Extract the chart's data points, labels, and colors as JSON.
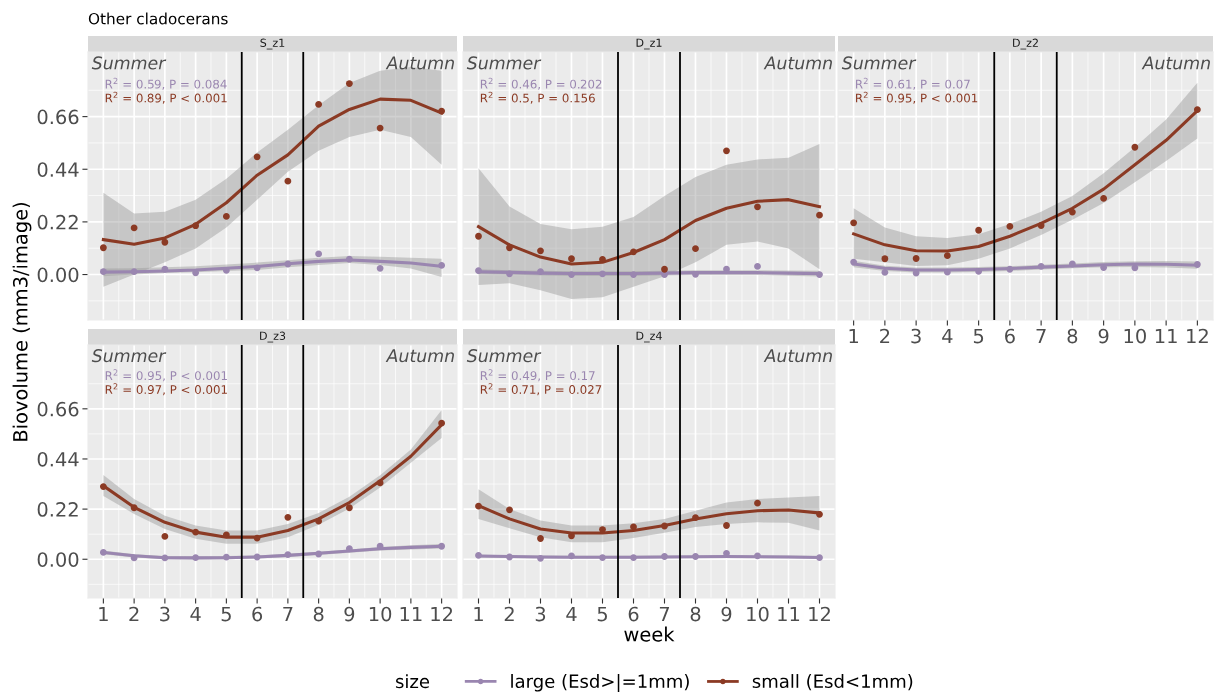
{
  "chart_data": [
    {
      "type": "line",
      "title": "S_z1",
      "xlim": [
        0.5,
        12.5
      ],
      "ylim": [
        -0.19,
        0.93
      ],
      "xticks": [
        1,
        2,
        3,
        4,
        5,
        6,
        7,
        8,
        9,
        10,
        11,
        12
      ],
      "yticks": [
        {
          "value": 0,
          "label": "0.00"
        },
        {
          "value": 0.22,
          "label": "0.22"
        },
        {
          "value": 0.44,
          "label": "0.44"
        },
        {
          "value": 0.66,
          "label": "0.66"
        }
      ],
      "tick_labels": "y",
      "grid": true,
      "legend": "bottom",
      "line_style": "solid",
      "ref_lines": [
        {
          "axis": "x",
          "value": 5.5,
          "color": "#000000"
        },
        {
          "axis": "x",
          "value": 7.5,
          "color": "#000000"
        }
      ],
      "annotations": [
        "Summer",
        "Autumn",
        "R$^{2}$ = 0.59, P = 0.084",
        "R$^{2}$ = 0.89, P < 0.001"
      ],
      "series": [
        {
          "type": "scatter",
          "color": "#9a86b0",
          "x": [
            1,
            2,
            3,
            4,
            5,
            6,
            7,
            8,
            9,
            10,
            12
          ],
          "values": [
            0.012,
            0.012,
            0.022,
            0.007,
            0.017,
            0.028,
            0.044,
            0.086,
            0.064,
            0.026,
            0.038
          ]
        },
        {
          "type": "scatter",
          "color": "#8b3a24",
          "x": [
            1,
            2,
            3,
            4,
            5,
            6,
            7,
            8,
            9,
            10,
            12
          ],
          "values": [
            0.112,
            0.195,
            0.135,
            0.204,
            0.243,
            0.492,
            0.39,
            0.711,
            0.798,
            0.612,
            0.683
          ]
        },
        {
          "type": "line",
          "name": "large (Esd>|=1mm)",
          "color": "#9a86b0",
          "x": [
            1,
            2,
            3,
            4,
            5,
            6,
            7,
            8,
            9,
            10,
            11,
            12
          ],
          "values": [
            0.01,
            0.012,
            0.015,
            0.019,
            0.026,
            0.034,
            0.045,
            0.055,
            0.061,
            0.055,
            0.048,
            0.034
          ],
          "lower": [
            -0.007,
            0.0,
            0.006,
            0.01,
            0.015,
            0.019,
            0.03,
            0.04,
            0.048,
            0.04,
            0.025,
            -0.01
          ],
          "upper": [
            0.025,
            0.026,
            0.03,
            0.035,
            0.042,
            0.05,
            0.06,
            0.07,
            0.077,
            0.074,
            0.07,
            0.066
          ]
        },
        {
          "type": "line",
          "name": "small (Esd<1mm)",
          "color": "#8b3a24",
          "x": [
            1,
            2,
            3,
            4,
            5,
            6,
            7,
            8,
            9,
            10,
            11,
            12
          ],
          "values": [
            0.146,
            0.127,
            0.153,
            0.21,
            0.3,
            0.415,
            0.5,
            0.62,
            0.69,
            0.733,
            0.728,
            0.675
          ],
          "lower": [
            -0.051,
            0.0,
            0.051,
            0.109,
            0.197,
            0.313,
            0.43,
            0.517,
            0.575,
            0.605,
            0.575,
            0.459
          ],
          "upper": [
            0.342,
            0.255,
            0.262,
            0.313,
            0.4,
            0.51,
            0.605,
            0.707,
            0.8,
            0.852,
            0.867,
            0.852
          ]
        }
      ]
    },
    {
      "type": "line",
      "title": "D_z1",
      "xlim": [
        0.5,
        12.5
      ],
      "ylim": [
        -0.19,
        0.93
      ],
      "xticks": [
        1,
        2,
        3,
        4,
        5,
        6,
        7,
        8,
        9,
        10,
        11,
        12
      ],
      "yticks": [
        0,
        0.22,
        0.44,
        0.66
      ],
      "tick_labels": false,
      "grid": true,
      "line_style": "solid",
      "ref_lines": [
        {
          "axis": "x",
          "value": 5.5,
          "color": "#000000"
        },
        {
          "axis": "x",
          "value": 7.5,
          "color": "#000000"
        }
      ],
      "annotations": [
        "Summer",
        "Autumn",
        "R$^{2}$ = 0.46, P = 0.202",
        "R$^{2}$ = 0.5, P = 0.156"
      ],
      "series": [
        {
          "type": "scatter",
          "color": "#9a86b0",
          "x": [
            1,
            2,
            3,
            4,
            5,
            6,
            7,
            8,
            9,
            10,
            12
          ],
          "values": [
            0.016,
            0.003,
            0.012,
            0.0,
            0.003,
            0.0,
            0.0,
            0.001,
            0.022,
            0.034,
            0.0
          ]
        },
        {
          "type": "scatter",
          "color": "#8b3a24",
          "x": [
            1,
            2,
            3,
            4,
            5,
            6,
            7,
            8,
            9,
            10,
            12
          ],
          "values": [
            0.16,
            0.112,
            0.099,
            0.066,
            0.063,
            0.095,
            0.022,
            0.108,
            0.517,
            0.283,
            0.248
          ]
        },
        {
          "type": "line",
          "name": "large (Esd>|=1mm)",
          "color": "#9a86b0",
          "x": [
            1,
            2,
            3,
            4,
            5,
            6,
            7,
            8,
            9,
            10,
            11,
            12
          ],
          "values": [
            0.012,
            0.009,
            0.006,
            0.004,
            0.004,
            0.004,
            0.006,
            0.008,
            0.008,
            0.008,
            0.006,
            0.004
          ],
          "lower": [
            0.002,
            0.0,
            -0.004,
            -0.006,
            -0.006,
            -0.006,
            -0.004,
            -0.002,
            -0.002,
            -0.002,
            -0.005,
            -0.008
          ],
          "upper": [
            0.022,
            0.018,
            0.016,
            0.014,
            0.014,
            0.014,
            0.016,
            0.018,
            0.018,
            0.018,
            0.017,
            0.016
          ]
        },
        {
          "type": "line",
          "name": "small (Esd<1mm)",
          "color": "#8b3a24",
          "x": [
            1,
            2,
            3,
            4,
            5,
            6,
            7,
            8,
            9,
            10,
            11,
            12
          ],
          "values": [
            0.2,
            0.124,
            0.073,
            0.044,
            0.051,
            0.092,
            0.146,
            0.226,
            0.277,
            0.306,
            0.313,
            0.284
          ],
          "lower": [
            -0.044,
            -0.036,
            -0.066,
            -0.102,
            -0.095,
            -0.051,
            -0.007,
            0.051,
            0.124,
            0.138,
            0.109,
            0.022
          ],
          "upper": [
            0.444,
            0.284,
            0.211,
            0.189,
            0.2,
            0.24,
            0.328,
            0.408,
            0.459,
            0.481,
            0.488,
            0.546
          ]
        }
      ]
    },
    {
      "type": "line",
      "title": "D_z2",
      "xlim": [
        0.5,
        12.5
      ],
      "ylim": [
        -0.19,
        0.93
      ],
      "xticks": [
        1,
        2,
        3,
        4,
        5,
        6,
        7,
        8,
        9,
        10,
        11,
        12
      ],
      "yticks": [
        0,
        0.22,
        0.44,
        0.66
      ],
      "tick_labels": "x",
      "grid": true,
      "line_style": "solid",
      "ref_lines": [
        {
          "axis": "x",
          "value": 5.5,
          "color": "#000000"
        },
        {
          "axis": "x",
          "value": 7.5,
          "color": "#000000"
        }
      ],
      "annotations": [
        "Summer",
        "Autumn",
        "R$^{2}$ = 0.61, P = 0.07",
        "R$^{2}$ = 0.95, P < 0.001"
      ],
      "series": [
        {
          "type": "scatter",
          "color": "#9a86b0",
          "x": [
            1,
            2,
            3,
            4,
            5,
            6,
            7,
            8,
            9,
            10,
            12
          ],
          "values": [
            0.052,
            0.009,
            0.006,
            0.01,
            0.013,
            0.022,
            0.034,
            0.044,
            0.029,
            0.028,
            0.042
          ]
        },
        {
          "type": "scatter",
          "color": "#8b3a24",
          "x": [
            1,
            2,
            3,
            4,
            5,
            6,
            7,
            8,
            9,
            10,
            12
          ],
          "values": [
            0.216,
            0.066,
            0.067,
            0.079,
            0.185,
            0.201,
            0.205,
            0.261,
            0.318,
            0.532,
            0.689
          ]
        },
        {
          "type": "line",
          "name": "large (Esd>|=1mm)",
          "color": "#9a86b0",
          "x": [
            1,
            2,
            3,
            4,
            5,
            6,
            7,
            8,
            9,
            10,
            11,
            12
          ],
          "values": [
            0.044,
            0.026,
            0.019,
            0.019,
            0.021,
            0.025,
            0.031,
            0.036,
            0.041,
            0.044,
            0.043,
            0.039
          ],
          "lower": [
            0.03,
            0.015,
            0.009,
            0.009,
            0.011,
            0.015,
            0.021,
            0.026,
            0.03,
            0.032,
            0.029,
            0.024
          ],
          "upper": [
            0.058,
            0.037,
            0.029,
            0.029,
            0.031,
            0.035,
            0.041,
            0.046,
            0.052,
            0.056,
            0.057,
            0.054
          ]
        },
        {
          "type": "line",
          "name": "small (Esd<1mm)",
          "color": "#8b3a24",
          "x": [
            1,
            2,
            3,
            4,
            5,
            6,
            7,
            8,
            9,
            10,
            11,
            12
          ],
          "values": [
            0.17,
            0.124,
            0.099,
            0.098,
            0.117,
            0.16,
            0.214,
            0.277,
            0.357,
            0.459,
            0.561,
            0.685
          ],
          "lower": [
            0.066,
            0.051,
            0.036,
            0.039,
            0.066,
            0.109,
            0.165,
            0.229,
            0.299,
            0.386,
            0.474,
            0.568
          ],
          "upper": [
            0.277,
            0.197,
            0.16,
            0.153,
            0.168,
            0.211,
            0.262,
            0.328,
            0.423,
            0.532,
            0.648,
            0.801
          ]
        }
      ]
    },
    {
      "type": "line",
      "title": "D_z3",
      "xlim": [
        0.5,
        12.5
      ],
      "ylim": [
        -0.17,
        0.94
      ],
      "xticks": [
        1,
        2,
        3,
        4,
        5,
        6,
        7,
        8,
        9,
        10,
        11,
        12
      ],
      "yticks": [
        {
          "value": 0,
          "label": "0.00"
        },
        {
          "value": 0.22,
          "label": "0.22"
        },
        {
          "value": 0.44,
          "label": "0.44"
        },
        {
          "value": 0.66,
          "label": "0.66"
        }
      ],
      "grid": true,
      "line_style": "solid",
      "ref_lines": [
        {
          "axis": "x",
          "value": 5.5,
          "color": "#000000"
        },
        {
          "axis": "x",
          "value": 7.5,
          "color": "#000000"
        }
      ],
      "annotations": [
        "Summer",
        "Autumn",
        "R$^{2}$ = 0.95, P < 0.001",
        "R$^{2}$ = 0.97, P < 0.001"
      ],
      "series": [
        {
          "type": "scatter",
          "color": "#9a86b0",
          "x": [
            1,
            2,
            3,
            4,
            5,
            6,
            7,
            8,
            9,
            10,
            12
          ],
          "values": [
            0.03,
            0.006,
            0.006,
            0.007,
            0.009,
            0.01,
            0.02,
            0.023,
            0.046,
            0.057,
            0.057
          ]
        },
        {
          "type": "scatter",
          "color": "#8b3a24",
          "x": [
            1,
            2,
            3,
            4,
            5,
            6,
            7,
            8,
            9,
            10,
            12
          ],
          "values": [
            0.319,
            0.226,
            0.1,
            0.119,
            0.107,
            0.093,
            0.184,
            0.167,
            0.226,
            0.335,
            0.597
          ]
        },
        {
          "type": "line",
          "name": "large (Esd>|=1mm)",
          "color": "#9a86b0",
          "x": [
            1,
            2,
            3,
            4,
            5,
            6,
            7,
            8,
            9,
            10,
            11,
            12
          ],
          "values": [
            0.03,
            0.015,
            0.007,
            0.006,
            0.007,
            0.01,
            0.017,
            0.026,
            0.036,
            0.046,
            0.052,
            0.057
          ],
          "lower": [
            0.022,
            0.008,
            0.0,
            -0.001,
            0.0,
            0.003,
            0.01,
            0.019,
            0.029,
            0.038,
            0.043,
            0.047
          ],
          "upper": [
            0.038,
            0.022,
            0.014,
            0.013,
            0.014,
            0.017,
            0.024,
            0.033,
            0.043,
            0.054,
            0.061,
            0.067
          ]
        },
        {
          "type": "line",
          "name": "small (Esd<1mm)",
          "color": "#8b3a24",
          "x": [
            1,
            2,
            3,
            4,
            5,
            6,
            7,
            8,
            9,
            10,
            11,
            12
          ],
          "values": [
            0.322,
            0.228,
            0.162,
            0.119,
            0.097,
            0.097,
            0.126,
            0.177,
            0.249,
            0.344,
            0.452,
            0.59
          ],
          "lower": [
            0.278,
            0.199,
            0.133,
            0.09,
            0.068,
            0.068,
            0.097,
            0.151,
            0.223,
            0.315,
            0.423,
            0.532
          ],
          "upper": [
            0.37,
            0.264,
            0.191,
            0.148,
            0.126,
            0.126,
            0.155,
            0.203,
            0.274,
            0.368,
            0.481,
            0.655
          ]
        }
      ]
    },
    {
      "type": "line",
      "title": "D_z4",
      "xlim": [
        0.5,
        12.5
      ],
      "ylim": [
        -0.17,
        0.94
      ],
      "xticks": [
        1,
        2,
        3,
        4,
        5,
        6,
        7,
        8,
        9,
        10,
        11,
        12
      ],
      "yticks": [
        0,
        0.22,
        0.44,
        0.66
      ],
      "tick_labels": "x",
      "grid": true,
      "line_style": "solid",
      "ref_lines": [
        {
          "axis": "x",
          "value": 5.5,
          "color": "#000000"
        },
        {
          "axis": "x",
          "value": 7.5,
          "color": "#000000"
        }
      ],
      "annotations": [
        "Summer",
        "Autumn",
        "R$^{2}$ = 0.49, P = 0.17",
        "R$^{2}$ = 0.71, P = 0.027"
      ],
      "series": [
        {
          "type": "scatter",
          "color": "#9a86b0",
          "x": [
            1,
            2,
            3,
            4,
            5,
            6,
            7,
            8,
            9,
            10,
            12
          ],
          "values": [
            0.017,
            0.01,
            0.004,
            0.015,
            0.007,
            0.007,
            0.012,
            0.012,
            0.026,
            0.015,
            0.007
          ]
        },
        {
          "type": "scatter",
          "color": "#8b3a24",
          "x": [
            1,
            2,
            3,
            4,
            5,
            6,
            7,
            8,
            9,
            10,
            12
          ],
          "values": [
            0.233,
            0.217,
            0.091,
            0.103,
            0.13,
            0.142,
            0.146,
            0.183,
            0.148,
            0.246,
            0.197
          ]
        },
        {
          "type": "line",
          "name": "large (Esd>|=1mm)",
          "color": "#9a86b0",
          "x": [
            1,
            2,
            3,
            4,
            5,
            6,
            7,
            8,
            9,
            10,
            11,
            12
          ],
          "values": [
            0.014,
            0.012,
            0.01,
            0.009,
            0.009,
            0.009,
            0.01,
            0.011,
            0.012,
            0.011,
            0.01,
            0.008
          ],
          "lower": [
            0.008,
            0.006,
            0.004,
            0.003,
            0.003,
            0.003,
            0.004,
            0.005,
            0.006,
            0.005,
            0.004,
            0.002
          ],
          "upper": [
            0.02,
            0.018,
            0.016,
            0.015,
            0.015,
            0.015,
            0.016,
            0.017,
            0.018,
            0.017,
            0.016,
            0.014
          ]
        },
        {
          "type": "line",
          "name": "small (Esd<1mm)",
          "color": "#8b3a24",
          "x": [
            1,
            2,
            3,
            4,
            5,
            6,
            7,
            8,
            9,
            10,
            11,
            12
          ],
          "values": [
            0.235,
            0.177,
            0.133,
            0.115,
            0.115,
            0.126,
            0.148,
            0.177,
            0.2,
            0.213,
            0.216,
            0.203
          ],
          "lower": [
            0.177,
            0.136,
            0.097,
            0.075,
            0.075,
            0.093,
            0.116,
            0.141,
            0.155,
            0.162,
            0.16,
            0.126
          ],
          "upper": [
            0.307,
            0.22,
            0.17,
            0.148,
            0.148,
            0.158,
            0.177,
            0.213,
            0.249,
            0.264,
            0.271,
            0.278
          ]
        }
      ]
    },
    {
      "type": "other",
      "title": "Other cladocerans",
      "xlabel": "week",
      "ylabel": "Biovolume (mm3/image)",
      "legend_title": "size"
    }
  ]
}
